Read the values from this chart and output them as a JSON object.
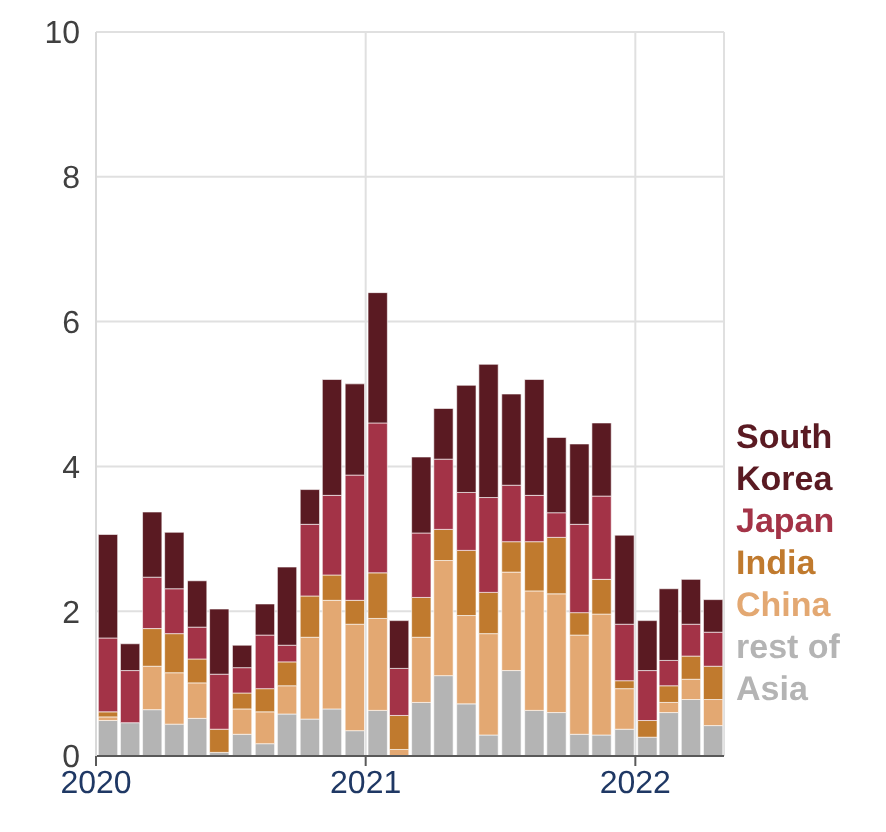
{
  "chart_data": {
    "type": "bar",
    "stacked": true,
    "x": [
      "2020-01-16",
      "2020-02-15",
      "2020-03-16",
      "2020-04-15",
      "2020-05-16",
      "2020-06-15",
      "2020-07-16",
      "2020-08-16",
      "2020-09-15",
      "2020-10-16",
      "2020-11-15",
      "2020-12-16",
      "2021-01-16",
      "2021-02-14",
      "2021-03-16",
      "2021-04-15",
      "2021-05-16",
      "2021-06-15",
      "2021-07-16",
      "2021-08-16",
      "2021-09-15",
      "2021-10-16",
      "2021-11-15",
      "2021-12-16",
      "2022-01-16",
      "2022-02-14",
      "2022-03-16",
      "2022-04-15"
    ],
    "series": [
      {
        "name": "rest of Asia",
        "color": "#b4b4b4",
        "values": [
          0.49,
          0.46,
          0.64,
          0.44,
          0.52,
          0.05,
          0.3,
          0.17,
          0.58,
          0.51,
          0.65,
          0.35,
          0.63,
          0,
          0.74,
          1.11,
          0.72,
          0.29,
          1.18,
          0.63,
          0.6,
          0.3,
          0.29,
          0.37,
          0.26,
          0.6,
          0.78,
          0.42
        ]
      },
      {
        "name": "China",
        "color": "#e3a872",
        "values": [
          0.05,
          0,
          0.6,
          0.71,
          0.49,
          0,
          0.35,
          0.44,
          0.39,
          1.13,
          1.5,
          1.47,
          1.27,
          0.09,
          0.9,
          1.59,
          1.22,
          1.4,
          1.36,
          1.65,
          1.64,
          1.37,
          1.67,
          0.56,
          0,
          0.14,
          0.28,
          0.36
        ]
      },
      {
        "name": "India",
        "color": "#c07a2e",
        "values": [
          0.07,
          0,
          0.52,
          0.54,
          0.33,
          0.32,
          0.22,
          0.32,
          0.33,
          0.57,
          0.35,
          0.33,
          0.63,
          0.47,
          0.55,
          0.43,
          0.9,
          0.57,
          0.42,
          0.68,
          0.78,
          0.31,
          0.48,
          0.11,
          0.23,
          0.23,
          0.32,
          0.46
        ]
      },
      {
        "name": "Japan",
        "color": "#a33347",
        "values": [
          1.02,
          0.72,
          0.71,
          0.62,
          0.44,
          0.76,
          0.35,
          0.74,
          0.23,
          0.99,
          1.1,
          1.73,
          2.07,
          0.65,
          0.89,
          0.97,
          0.8,
          1.31,
          0.78,
          0.64,
          0.34,
          1.22,
          1.15,
          0.78,
          0.69,
          0.35,
          0.44,
          0.47
        ]
      },
      {
        "name": "South Korea",
        "color": "#5a1a22",
        "values": [
          1.43,
          0.37,
          0.9,
          0.78,
          0.64,
          0.9,
          0.31,
          0.43,
          1.08,
          0.48,
          1.6,
          1.26,
          1.8,
          0.66,
          1.05,
          0.7,
          1.48,
          1.84,
          1.26,
          1.6,
          1.04,
          1.11,
          1.01,
          1.23,
          0.69,
          0.99,
          0.62,
          0.45
        ]
      }
    ],
    "xlim": [
      "2020",
      "2022-05"
    ],
    "xticks": [
      "2020",
      "2021",
      "2022"
    ],
    "ylim": [
      0,
      10
    ],
    "yticks": [
      0,
      2,
      4,
      6,
      8,
      10
    ],
    "grid": true,
    "legend": "right"
  }
}
